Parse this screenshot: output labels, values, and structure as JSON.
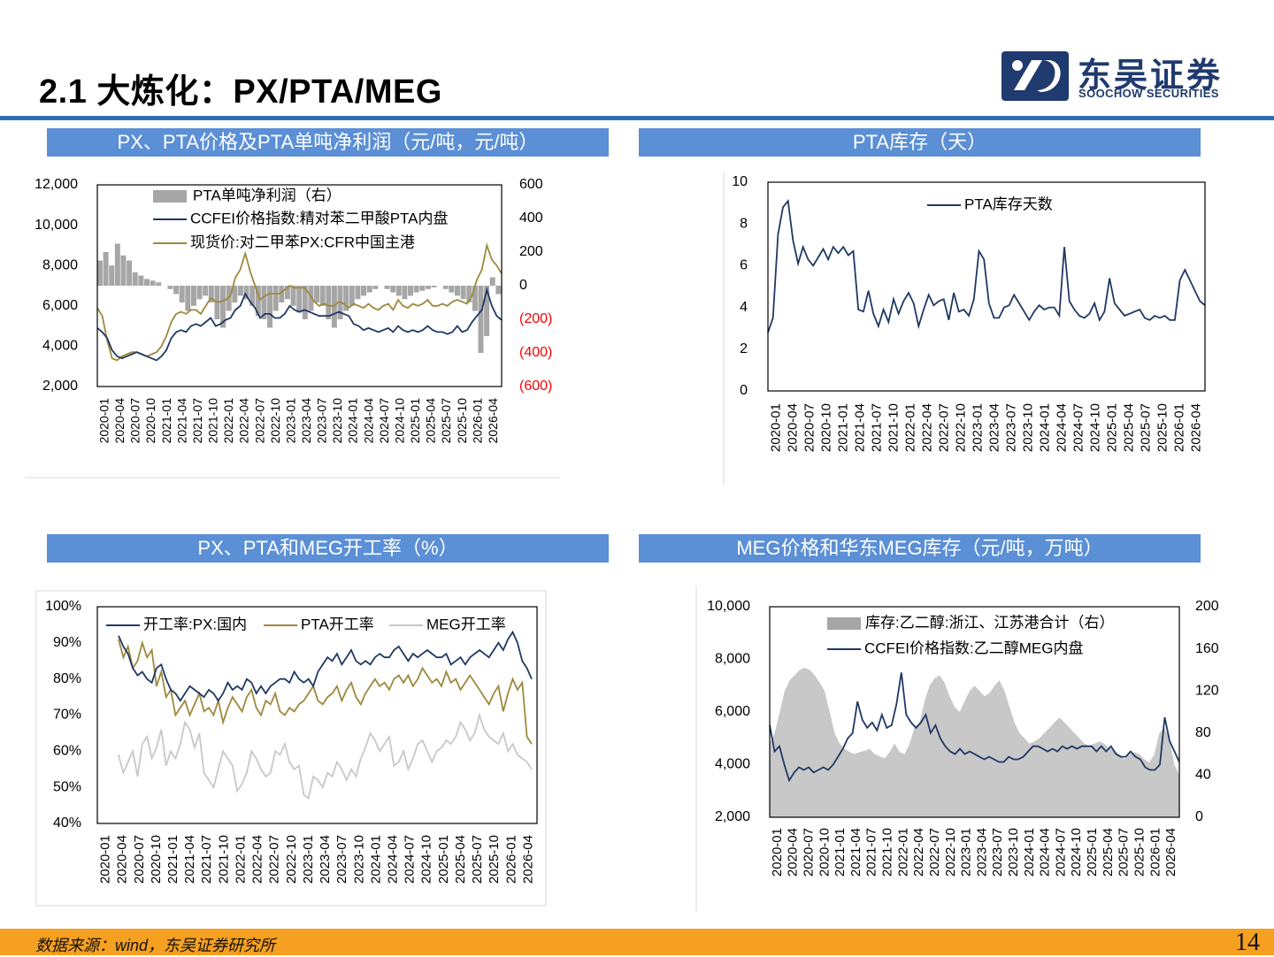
{
  "header": {
    "title": "2.1 大炼化：PX/PTA/MEG",
    "logo_cn": "东吴证券",
    "logo_en": "SOOCHOW SECURITIES"
  },
  "panels": [
    {
      "title": "PX、PTA价格及PTA单吨净利润（元/吨，元/吨）"
    },
    {
      "title": "PTA库存（天）"
    },
    {
      "title": "PX、PTA和MEG开工率（%）"
    },
    {
      "title": "MEG价格和华东MEG库存（元/吨，万吨）"
    }
  ],
  "footer": {
    "source": "数据来源：wind，东吴证券研究所",
    "page": "14"
  },
  "colors": {
    "navy": "#203864",
    "olive": "#9c8a3c",
    "gray": "#a6a6a6",
    "lightgray": "#c8c8c8",
    "accent": "#5b8fd6",
    "negative": "#ff0000"
  },
  "chart_data": [
    {
      "type": "line",
      "x_ticks": [
        "2020-01",
        "2020-04",
        "2020-07",
        "2020-10",
        "2021-01",
        "2021-04",
        "2021-07",
        "2021-10",
        "2022-01",
        "2022-04",
        "2022-07",
        "2022-10",
        "2023-01",
        "2023-04",
        "2023-07",
        "2023-10",
        "2024-01",
        "2024-04",
        "2024-07",
        "2024-10",
        "2025-01",
        "2025-04",
        "2025-07",
        "2025-10",
        "2026-01",
        "2026-04"
      ],
      "y_ticks_left": [
        "12,000",
        "10,000",
        "8,000",
        "6,000",
        "4,000",
        "2,000"
      ],
      "y_ticks_right": [
        "600",
        "400",
        "200",
        "0",
        "(200)",
        "(400)",
        "(600)"
      ],
      "ylim": [
        2000,
        12000
      ],
      "y2lim": [
        -600,
        600
      ],
      "series": [
        {
          "name": "PTA单吨净利润（右）",
          "kind": "bar",
          "axis": "right",
          "values": [
            150,
            200,
            120,
            250,
            180,
            150,
            80,
            60,
            40,
            30,
            20,
            0,
            -20,
            -50,
            -100,
            -150,
            -120,
            -80,
            -60,
            -100,
            -200,
            -250,
            -150,
            -100,
            -60,
            -80,
            -120,
            -180,
            -200,
            -250,
            -150,
            -100,
            -80,
            -120,
            -160,
            -200,
            -150,
            -100,
            -120,
            -200,
            -250,
            -200,
            -150,
            -120,
            -80,
            -60,
            -40,
            -20,
            0,
            -20,
            -40,
            -60,
            -80,
            -60,
            -40,
            -30,
            -20,
            -10,
            0,
            -20,
            -40,
            -60,
            -80,
            -100,
            -150,
            -400,
            -300,
            50,
            -50
          ]
        },
        {
          "name": "CCFEI价格指数:精对苯二甲酸PTA内盘",
          "kind": "line",
          "axis": "left",
          "values": [
            4900,
            4700,
            4400,
            3800,
            3500,
            3400,
            3500,
            3600,
            3700,
            3600,
            3500,
            3400,
            3300,
            3500,
            3800,
            4400,
            4700,
            4800,
            4700,
            5000,
            5100,
            5000,
            5200,
            5400,
            5000,
            5100,
            5300,
            5400,
            5800,
            6000,
            6600,
            6200,
            5900,
            5400,
            5600,
            5600,
            5400,
            5400,
            5600,
            6000,
            5800,
            5700,
            5800,
            5700,
            5600,
            5500,
            5500,
            5500,
            5600,
            5700,
            5600,
            5500,
            5100,
            5000,
            4800,
            4900,
            4800,
            4700,
            4800,
            4900,
            4700,
            5000,
            4800,
            4700,
            4800,
            4700,
            4800,
            5000,
            4800,
            4700,
            4700,
            4600,
            4700,
            5000,
            4700,
            4800,
            5200,
            5500,
            5800,
            6800,
            6000,
            5500,
            5300
          ]
        },
        {
          "name": "现货价:对二甲苯PX:CFR中国主港",
          "kind": "line",
          "axis": "left",
          "values": [
            5900,
            5500,
            4300,
            3400,
            3300,
            3500,
            3600,
            3700,
            3700,
            3600,
            3500,
            3600,
            3700,
            4000,
            4500,
            5200,
            5600,
            5700,
            5600,
            5800,
            5800,
            5600,
            6000,
            6400,
            6200,
            6200,
            6300,
            6500,
            7400,
            7800,
            8600,
            7700,
            7000,
            6300,
            6500,
            6600,
            6600,
            6600,
            6800,
            7000,
            6900,
            6900,
            6900,
            6600,
            6200,
            6000,
            6100,
            6000,
            6000,
            6200,
            6100,
            5900,
            6100,
            6000,
            5900,
            6100,
            5900,
            5800,
            6000,
            6100,
            5800,
            6300,
            6000,
            5900,
            6100,
            6000,
            6100,
            6300,
            6000,
            6000,
            6100,
            6000,
            6200,
            6300,
            6200,
            6100,
            6500,
            7300,
            7800,
            9000,
            8300,
            8000,
            7600
          ]
        }
      ]
    },
    {
      "type": "line",
      "x_ticks": [
        "2020-01",
        "2020-04",
        "2020-07",
        "2020-10",
        "2021-01",
        "2021-04",
        "2021-07",
        "2021-10",
        "2022-01",
        "2022-04",
        "2022-07",
        "2022-10",
        "2023-01",
        "2023-04",
        "2023-07",
        "2023-10",
        "2024-01",
        "2024-04",
        "2024-07",
        "2024-10",
        "2025-01",
        "2025-04",
        "2025-07",
        "2025-10",
        "2026-01",
        "2026-04"
      ],
      "y_ticks": [
        "10",
        "8",
        "6",
        "4",
        "2",
        "0"
      ],
      "ylim": [
        0,
        10
      ],
      "series": [
        {
          "name": "PTA库存天数",
          "values": [
            2.8,
            3.5,
            7.5,
            8.8,
            9.1,
            7.2,
            6.1,
            6.9,
            6.3,
            6.0,
            6.4,
            6.8,
            6.3,
            6.9,
            6.6,
            6.9,
            6.5,
            6.7,
            3.9,
            3.8,
            4.8,
            3.7,
            3.1,
            3.9,
            3.3,
            4.4,
            3.7,
            4.3,
            4.7,
            4.2,
            3.1,
            3.9,
            4.6,
            4.1,
            4.3,
            4.4,
            3.4,
            4.7,
            3.8,
            3.9,
            3.6,
            4.4,
            6.7,
            6.3,
            4.2,
            3.5,
            3.5,
            4.0,
            4.1,
            4.6,
            4.2,
            3.8,
            3.4,
            3.8,
            4.1,
            3.9,
            4.0,
            4.0,
            3.6,
            6.9,
            4.3,
            3.9,
            3.6,
            3.5,
            3.7,
            4.2,
            3.4,
            3.8,
            5.4,
            4.2,
            3.9,
            3.6,
            3.7,
            3.8,
            3.9,
            3.5,
            3.4,
            3.6,
            3.5,
            3.6,
            3.4,
            3.4,
            5.3,
            5.8,
            5.3,
            4.8,
            4.3,
            4.1
          ]
        }
      ]
    },
    {
      "type": "line",
      "x_ticks": [
        "2020-01",
        "2020-04",
        "2020-07",
        "2020-10",
        "2021-01",
        "2021-04",
        "2021-07",
        "2021-10",
        "2022-01",
        "2022-04",
        "2022-07",
        "2022-10",
        "2023-01",
        "2023-04",
        "2023-07",
        "2023-10",
        "2024-01",
        "2024-04",
        "2024-07",
        "2024-10",
        "2025-01",
        "2025-04",
        "2025-07",
        "2025-10",
        "2026-01",
        "2026-04"
      ],
      "y_ticks": [
        "100%",
        "90%",
        "80%",
        "70%",
        "60%",
        "50%",
        "40%"
      ],
      "ylim": [
        40,
        100
      ],
      "series": [
        {
          "name": "开工率:PX:国内",
          "values": [
            92,
            89,
            87,
            83,
            81,
            82,
            80,
            79,
            83,
            84,
            80,
            77,
            76,
            74,
            76,
            78,
            77,
            76,
            75,
            77,
            76,
            74,
            76,
            79,
            77,
            78,
            77,
            80,
            79,
            76,
            78,
            76,
            78,
            79,
            80,
            80,
            79,
            82,
            80,
            79,
            80,
            78,
            82,
            84,
            86,
            85,
            87,
            84,
            86,
            88,
            85,
            84,
            85,
            84,
            86,
            87,
            86,
            86,
            88,
            89,
            87,
            85,
            87,
            86,
            87,
            88,
            87,
            86,
            86,
            87,
            84,
            85,
            86,
            84,
            86,
            87,
            88,
            87,
            86,
            88,
            90,
            88,
            91,
            93,
            90,
            85,
            83,
            80
          ]
        },
        {
          "name": "PTA开工率",
          "values": [
            91,
            86,
            89,
            83,
            85,
            90,
            86,
            88,
            78,
            82,
            75,
            77,
            70,
            72,
            74,
            70,
            73,
            76,
            71,
            72,
            70,
            74,
            68,
            72,
            75,
            73,
            71,
            75,
            77,
            72,
            70,
            74,
            73,
            76,
            71,
            70,
            72,
            71,
            73,
            74,
            76,
            78,
            74,
            73,
            75,
            76,
            78,
            74,
            77,
            79,
            75,
            73,
            76,
            78,
            80,
            78,
            79,
            77,
            80,
            81,
            79,
            81,
            78,
            80,
            83,
            81,
            79,
            80,
            78,
            82,
            79,
            80,
            77,
            79,
            81,
            79,
            77,
            75,
            73,
            76,
            78,
            71,
            76,
            80,
            77,
            79,
            64,
            62
          ]
        },
        {
          "name": "MEG开工率",
          "values": [
            59,
            54,
            57,
            60,
            53,
            62,
            64,
            58,
            61,
            66,
            56,
            60,
            58,
            62,
            68,
            66,
            61,
            65,
            54,
            52,
            50,
            55,
            60,
            58,
            56,
            49,
            51,
            54,
            60,
            58,
            55,
            53,
            54,
            60,
            59,
            62,
            57,
            55,
            56,
            48,
            47,
            53,
            52,
            50,
            54,
            53,
            57,
            55,
            52,
            55,
            53,
            58,
            61,
            65,
            63,
            60,
            62,
            64,
            56,
            57,
            60,
            55,
            58,
            62,
            63,
            60,
            57,
            60,
            61,
            63,
            62,
            64,
            68,
            66,
            63,
            65,
            70,
            66,
            64,
            63,
            62,
            65,
            60,
            62,
            59,
            58,
            57,
            55
          ]
        }
      ]
    },
    {
      "type": "line",
      "x_ticks": [
        "2020-01",
        "2020-04",
        "2020-07",
        "2020-10",
        "2021-01",
        "2021-04",
        "2021-07",
        "2021-10",
        "2022-01",
        "2022-04",
        "2022-07",
        "2022-10",
        "2023-01",
        "2023-04",
        "2023-07",
        "2023-10",
        "2024-01",
        "2024-04",
        "2024-07",
        "2024-10",
        "2025-01",
        "2025-04",
        "2025-07",
        "2025-10",
        "2026-01",
        "2026-04"
      ],
      "y_ticks_left": [
        "10,000",
        "8,000",
        "6,000",
        "4,000",
        "2,000"
      ],
      "y_ticks_right": [
        "200",
        "160",
        "120",
        "80",
        "40",
        "0"
      ],
      "ylim": [
        2000,
        10000
      ],
      "y2lim": [
        0,
        200
      ],
      "series": [
        {
          "name": "库存:乙二醇:浙江、江苏港合计（右）",
          "kind": "area",
          "axis": "right",
          "values": [
            70,
            80,
            100,
            120,
            130,
            135,
            140,
            142,
            140,
            135,
            128,
            120,
            100,
            80,
            70,
            65,
            62,
            60,
            62,
            63,
            65,
            60,
            58,
            56,
            62,
            70,
            62,
            60,
            70,
            85,
            90,
            110,
            125,
            132,
            135,
            128,
            115,
            105,
            100,
            110,
            120,
            125,
            120,
            115,
            118,
            125,
            130,
            120,
            105,
            90,
            80,
            75,
            70,
            72,
            75,
            80,
            85,
            90,
            95,
            90,
            85,
            80,
            75,
            70,
            68,
            70,
            72,
            70,
            66,
            64,
            60,
            55,
            60,
            62,
            60,
            55,
            52,
            60,
            80,
            85,
            75,
            50,
            40
          ]
        },
        {
          "name": "CCFEI价格指数:乙二醇MEG内盘",
          "kind": "line",
          "axis": "left",
          "values": [
            5500,
            4500,
            4700,
            4000,
            3400,
            3700,
            3900,
            3800,
            3900,
            3700,
            3800,
            3900,
            3800,
            4000,
            4300,
            4600,
            5000,
            5200,
            6400,
            5700,
            5400,
            5600,
            5300,
            5900,
            5400,
            5500,
            6300,
            7500,
            5900,
            5600,
            5400,
            5600,
            5900,
            5200,
            5500,
            5000,
            4700,
            4500,
            4400,
            4600,
            4400,
            4500,
            4400,
            4300,
            4200,
            4300,
            4200,
            4100,
            4100,
            4300,
            4200,
            4200,
            4300,
            4500,
            4700,
            4700,
            4600,
            4500,
            4600,
            4500,
            4700,
            4600,
            4700,
            4600,
            4700,
            4700,
            4700,
            4500,
            4700,
            4500,
            4700,
            4400,
            4300,
            4300,
            4500,
            4300,
            4200,
            3900,
            3800,
            3800,
            4000,
            5800,
            4900,
            4500,
            4100
          ]
        }
      ]
    }
  ]
}
